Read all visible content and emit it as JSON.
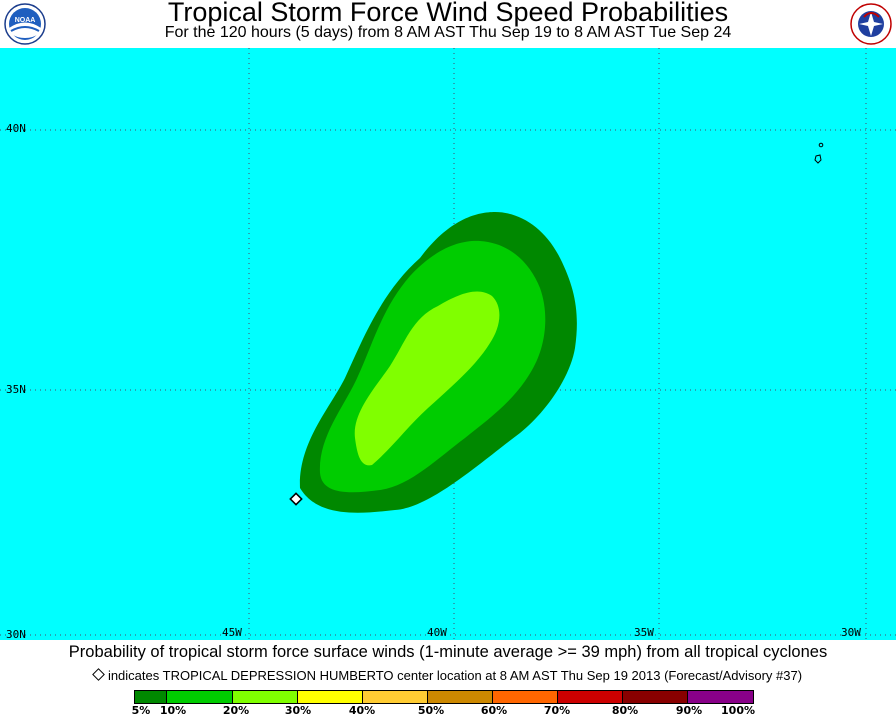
{
  "header": {
    "title": "Tropical Storm Force Wind Speed Probabilities",
    "subtitle": "For the 120 hours (5 days) from 8 AM AST Thu Sep 19 to 8 AM AST Tue Sep 24"
  },
  "logos": {
    "left": "NOAA",
    "right": "National Weather Service"
  },
  "map": {
    "ocean_color": "#00ffff",
    "lat_labels": [
      "40N",
      "35N",
      "30N"
    ],
    "lon_labels": [
      "45W",
      "40W",
      "35W",
      "30W"
    ],
    "storm_marker": "diamond"
  },
  "caption": "Probability of tropical storm force surface winds (1-minute average >= 39 mph) from all tropical cyclones",
  "legend_note": "indicates TROPICAL DEPRESSION HUMBERTO center location at 8 AM AST Thu Sep 19 2013 (Forecast/Advisory #37)",
  "colorbar": {
    "colors": [
      "#008800",
      "#00cc00",
      "#80ff00",
      "#ffff00",
      "#ffcc33",
      "#cc8800",
      "#ff6600",
      "#cc0000",
      "#880000",
      "#880088"
    ],
    "labels": [
      "5%",
      "10%",
      "20%",
      "30%",
      "40%",
      "50%",
      "60%",
      "70%",
      "80%",
      "90%",
      "100%"
    ]
  }
}
